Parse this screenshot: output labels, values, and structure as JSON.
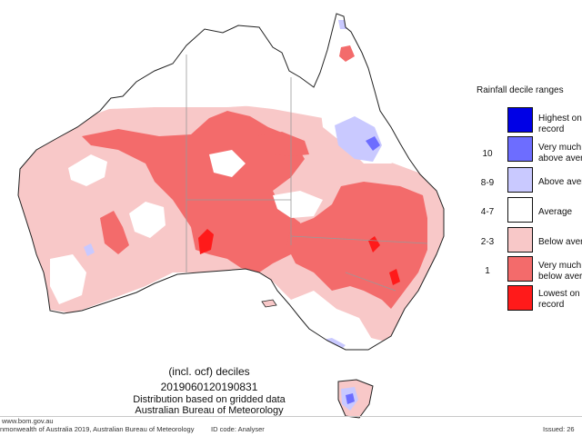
{
  "legend": {
    "title": "Rainfall decile ranges",
    "items": [
      {
        "code": "",
        "label_lines": [
          "Highest on",
          "record"
        ],
        "color": "#0000e6"
      },
      {
        "code": "10",
        "label_lines": [
          "Very much",
          "above aver"
        ],
        "color": "#6d6dff"
      },
      {
        "code": "8-9",
        "label_lines": [
          "Above aver"
        ],
        "color": "#c9c9ff"
      },
      {
        "code": "4-7",
        "label_lines": [
          "Average"
        ],
        "color": "#ffffff"
      },
      {
        "code": "2-3",
        "label_lines": [
          "Below aver"
        ],
        "color": "#f8c8c8"
      },
      {
        "code": "1",
        "label_lines": [
          "Very much",
          "below aver"
        ],
        "color": "#f36b6b"
      },
      {
        "code": "",
        "label_lines": [
          "Lowest on",
          "record"
        ],
        "color": "#ff1a1a"
      }
    ]
  },
  "caption": {
    "line1": "(incl. ocf) deciles",
    "line2": "2019060120190831",
    "line3": "Distribution based on gridded data",
    "line4": "Australian Bureau of Meteorology"
  },
  "footer": {
    "website": "www.bom.gov.au",
    "copyright": "nmonwealth of Australia 2019, Australian Bureau of Meteorology",
    "id_code": "ID code: Analyser",
    "issued": "Issued: 26"
  },
  "colors": {
    "outline": "#222222",
    "boundary": "#999999",
    "very_much_below": "#f36b6b",
    "below": "#f8c8c8",
    "above": "#c9c9ff",
    "very_much_above": "#6d6dff",
    "lowest": "#ff1a1a"
  }
}
